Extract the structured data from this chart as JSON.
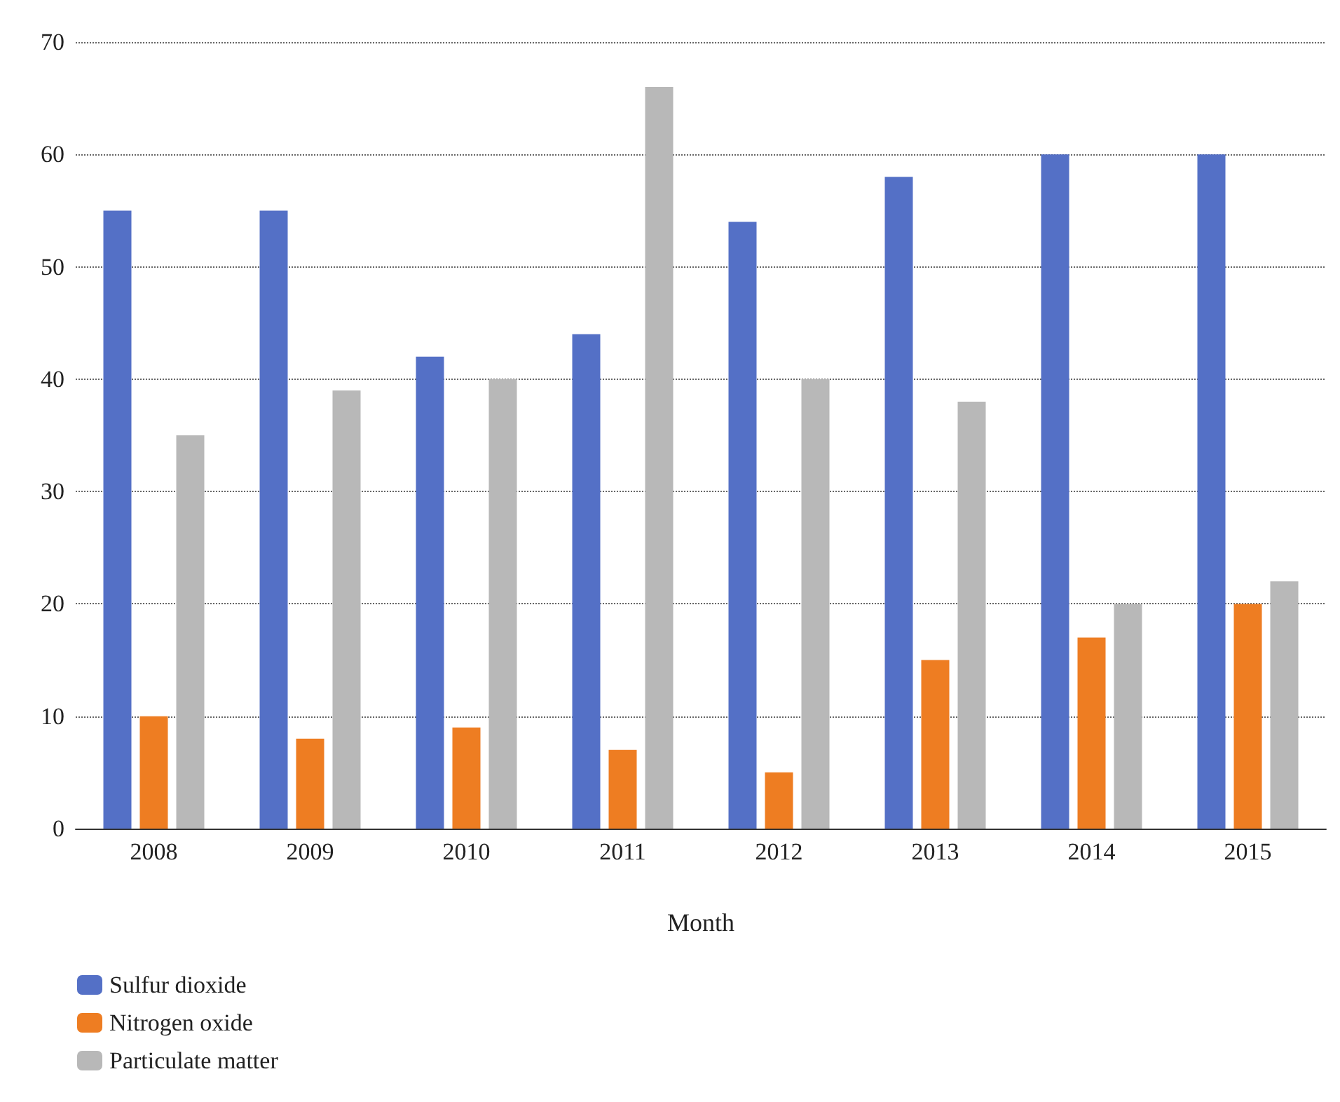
{
  "chart_data": {
    "type": "bar",
    "xlabel": "Month",
    "categories": [
      "2008",
      "2009",
      "2010",
      "2011",
      "2012",
      "2013",
      "2014",
      "2015"
    ],
    "series": [
      {
        "name": "Sulfur dioxide",
        "color": "#5470c6",
        "values": [
          55,
          55,
          42,
          44,
          54,
          58,
          60,
          60
        ]
      },
      {
        "name": "Nitrogen oxide",
        "color": "#ee7d22",
        "values": [
          10,
          8,
          9,
          7,
          5,
          15,
          17,
          20
        ]
      },
      {
        "name": "Particulate matter",
        "color": "#b8b8b8",
        "values": [
          35,
          39,
          40,
          66,
          40,
          38,
          20,
          22
        ]
      }
    ],
    "ylim": [
      0,
      70
    ],
    "yticks": [
      0,
      10,
      20,
      30,
      40,
      50,
      60,
      70
    ],
    "grid": "y",
    "legend": "bottom left"
  }
}
